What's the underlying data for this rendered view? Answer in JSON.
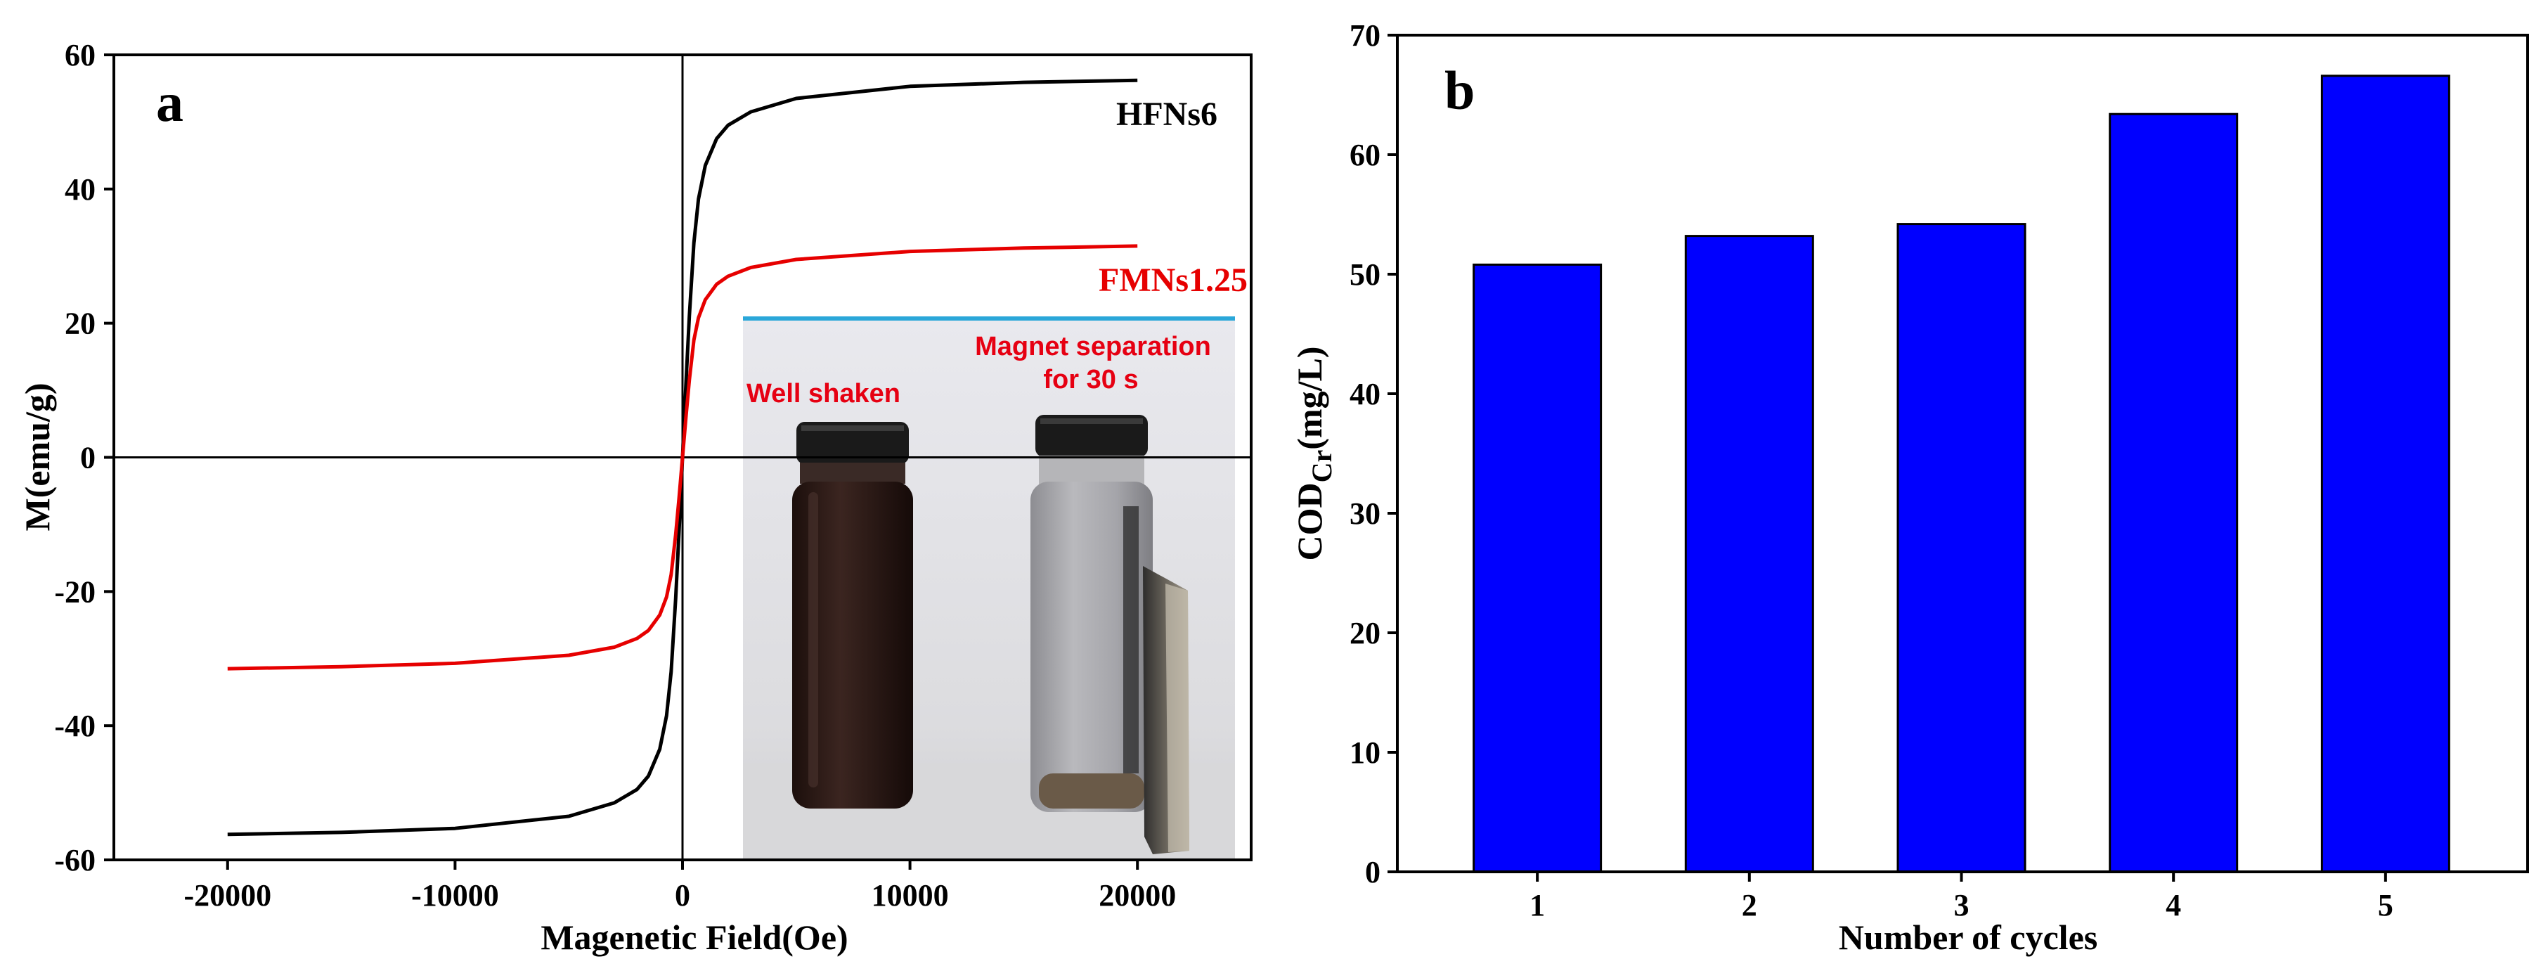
{
  "chart_data": [
    {
      "panel": "a",
      "type": "line",
      "xlabel": "Magenetic Field(Oe)",
      "ylabel": "M(emu/g)",
      "xlim": [
        -25000,
        25000
      ],
      "ylim": [
        -60,
        60
      ],
      "xticks": [
        "-20000",
        "-10000",
        "0",
        "10000",
        "20000"
      ],
      "yticks": [
        "-60",
        "-40",
        "-20",
        "0",
        "20",
        "40",
        "60"
      ],
      "series": [
        {
          "name": "HFNs6",
          "color": "#000000",
          "x": [
            -20000,
            -15000,
            -10000,
            -5000,
            -3000,
            -2000,
            -1500,
            -1000,
            -700,
            -500,
            -300,
            -150,
            0,
            150,
            300,
            500,
            700,
            1000,
            1500,
            2000,
            3000,
            5000,
            10000,
            15000,
            20000
          ],
          "y": [
            -56.2,
            -55.9,
            -55.3,
            -53.5,
            -51.5,
            -49.5,
            -47.5,
            -43.5,
            -38.5,
            -32,
            -21,
            -11,
            0,
            11,
            21,
            32,
            38.5,
            43.5,
            47.5,
            49.5,
            51.5,
            53.5,
            55.3,
            55.9,
            56.2
          ]
        },
        {
          "name": "FMNs1.25",
          "color": "#e60000",
          "x": [
            -20000,
            -15000,
            -10000,
            -5000,
            -3000,
            -2000,
            -1500,
            -1000,
            -700,
            -500,
            -300,
            -150,
            0,
            150,
            300,
            500,
            700,
            1000,
            1500,
            2000,
            3000,
            5000,
            10000,
            15000,
            20000
          ],
          "y": [
            -31.5,
            -31.2,
            -30.7,
            -29.5,
            -28.3,
            -27,
            -25.8,
            -23.5,
            -20.8,
            -17.5,
            -11.5,
            -6,
            0,
            6,
            11.5,
            17.5,
            20.8,
            23.5,
            25.8,
            27,
            28.3,
            29.5,
            30.7,
            31.2,
            31.5
          ]
        }
      ],
      "inset_photo": {
        "left_caption": "Well shaken",
        "right_caption_line1": "Magnet separation",
        "right_caption_line2": "for 30 s"
      }
    },
    {
      "panel": "b",
      "type": "bar",
      "categories": [
        "1",
        "2",
        "3",
        "4",
        "5"
      ],
      "values": [
        50.8,
        53.2,
        54.2,
        63.4,
        66.6
      ],
      "bar_color": "#0000ff",
      "xlabel": "Number of cycles",
      "ylabel_main": "COD",
      "ylabel_sub": "Cr",
      "ylabel_unit": "(mg/L)",
      "ylim": [
        0,
        70
      ],
      "yticks": [
        "0",
        "10",
        "20",
        "30",
        "40",
        "50",
        "60",
        "70"
      ]
    }
  ]
}
